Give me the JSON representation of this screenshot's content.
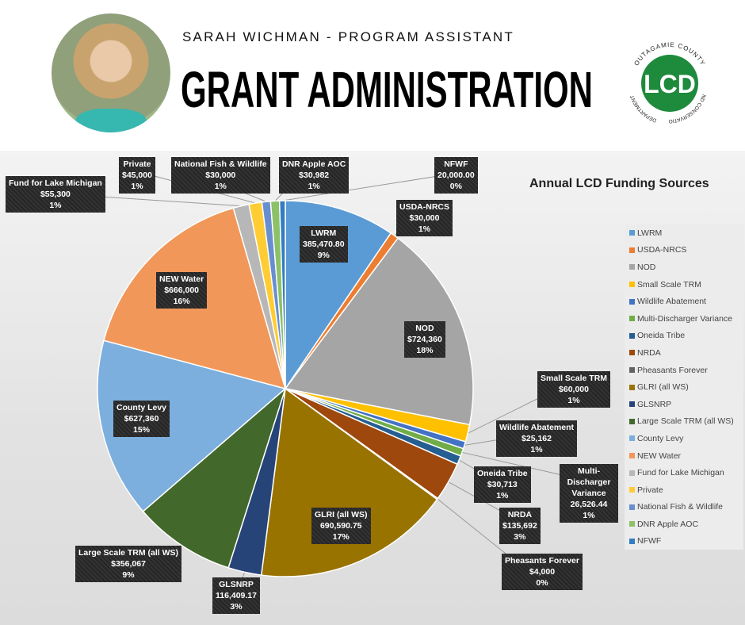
{
  "header": {
    "subtitle": "SARAH WICHMAN - PROGRAM ASSISTANT",
    "title": "GRANT ADMINISTRATION",
    "logo": {
      "center": "LCD",
      "ring_top": "OUTAGAMIE COUNTY",
      "ring_right": "LAND CONSERVATION",
      "ring_left": "DEPARTMENT",
      "color": "#1e8a3c"
    }
  },
  "chart_data": {
    "type": "pie",
    "title": "Annual LCD Funding Sources",
    "legend_position": "right",
    "slices": [
      {
        "name": "LWRM",
        "value": 385470.8,
        "value_label": "385,470.80",
        "percent": "9%",
        "color": "#5b9bd5"
      },
      {
        "name": "USDA-NRCS",
        "value": 30000,
        "value_label": "$30,000",
        "percent": "1%",
        "color": "#ed7d31"
      },
      {
        "name": "NOD",
        "value": 724360,
        "value_label": "$724,360",
        "percent": "18%",
        "color": "#a5a5a5"
      },
      {
        "name": "Small Scale TRM",
        "value": 60000,
        "value_label": "$60,000",
        "percent": "1%",
        "color": "#ffc000"
      },
      {
        "name": "Wildlife Abatement",
        "value": 25162,
        "value_label": "$25,162",
        "percent": "1%",
        "color": "#4472c4"
      },
      {
        "name": "Multi-Discharger Variance",
        "value": 26526.44,
        "value_label": "26,526.44",
        "percent": "1%",
        "color": "#70ad47"
      },
      {
        "name": "Oneida Tribe",
        "value": 30713,
        "value_label": "$30,713",
        "percent": "1%",
        "color": "#255e91"
      },
      {
        "name": "NRDA",
        "value": 135692,
        "value_label": "$135,692",
        "percent": "3%",
        "color": "#9e480e"
      },
      {
        "name": "Pheasants Forever",
        "value": 4000,
        "value_label": "$4,000",
        "percent": "0%",
        "color": "#636363"
      },
      {
        "name": "GLRI (all WS)",
        "value": 690590.75,
        "value_label": "690,590.75",
        "percent": "17%",
        "color": "#997300"
      },
      {
        "name": "GLSNRP",
        "value": 116409.17,
        "value_label": "116,409.17",
        "percent": "3%",
        "color": "#264478"
      },
      {
        "name": "Large Scale TRM (all WS)",
        "value": 356067,
        "value_label": "$356,067",
        "percent": "9%",
        "color": "#43682b"
      },
      {
        "name": "County Levy",
        "value": 627360,
        "value_label": "$627,360",
        "percent": "15%",
        "color": "#7cafdd"
      },
      {
        "name": "NEW Water",
        "value": 666000,
        "value_label": "$666,000",
        "percent": "16%",
        "color": "#f1975a"
      },
      {
        "name": "Fund for Lake Michigan",
        "value": 55300,
        "value_label": "$55,300",
        "percent": "1%",
        "color": "#b7b7b7"
      },
      {
        "name": "Private",
        "value": 45000,
        "value_label": "$45,000",
        "percent": "1%",
        "color": "#ffcd33"
      },
      {
        "name": "National Fish & Wildlife",
        "value": 30000,
        "value_label": "$30,000",
        "percent": "1%",
        "color": "#698ed0"
      },
      {
        "name": "DNR Apple AOC",
        "value": 30982,
        "value_label": "$30,982",
        "percent": "1%",
        "color": "#8cc168"
      },
      {
        "name": "NFWF",
        "value": 20000,
        "value_label": "20,000.00",
        "percent": "0%",
        "color": "#327dc2"
      }
    ]
  }
}
